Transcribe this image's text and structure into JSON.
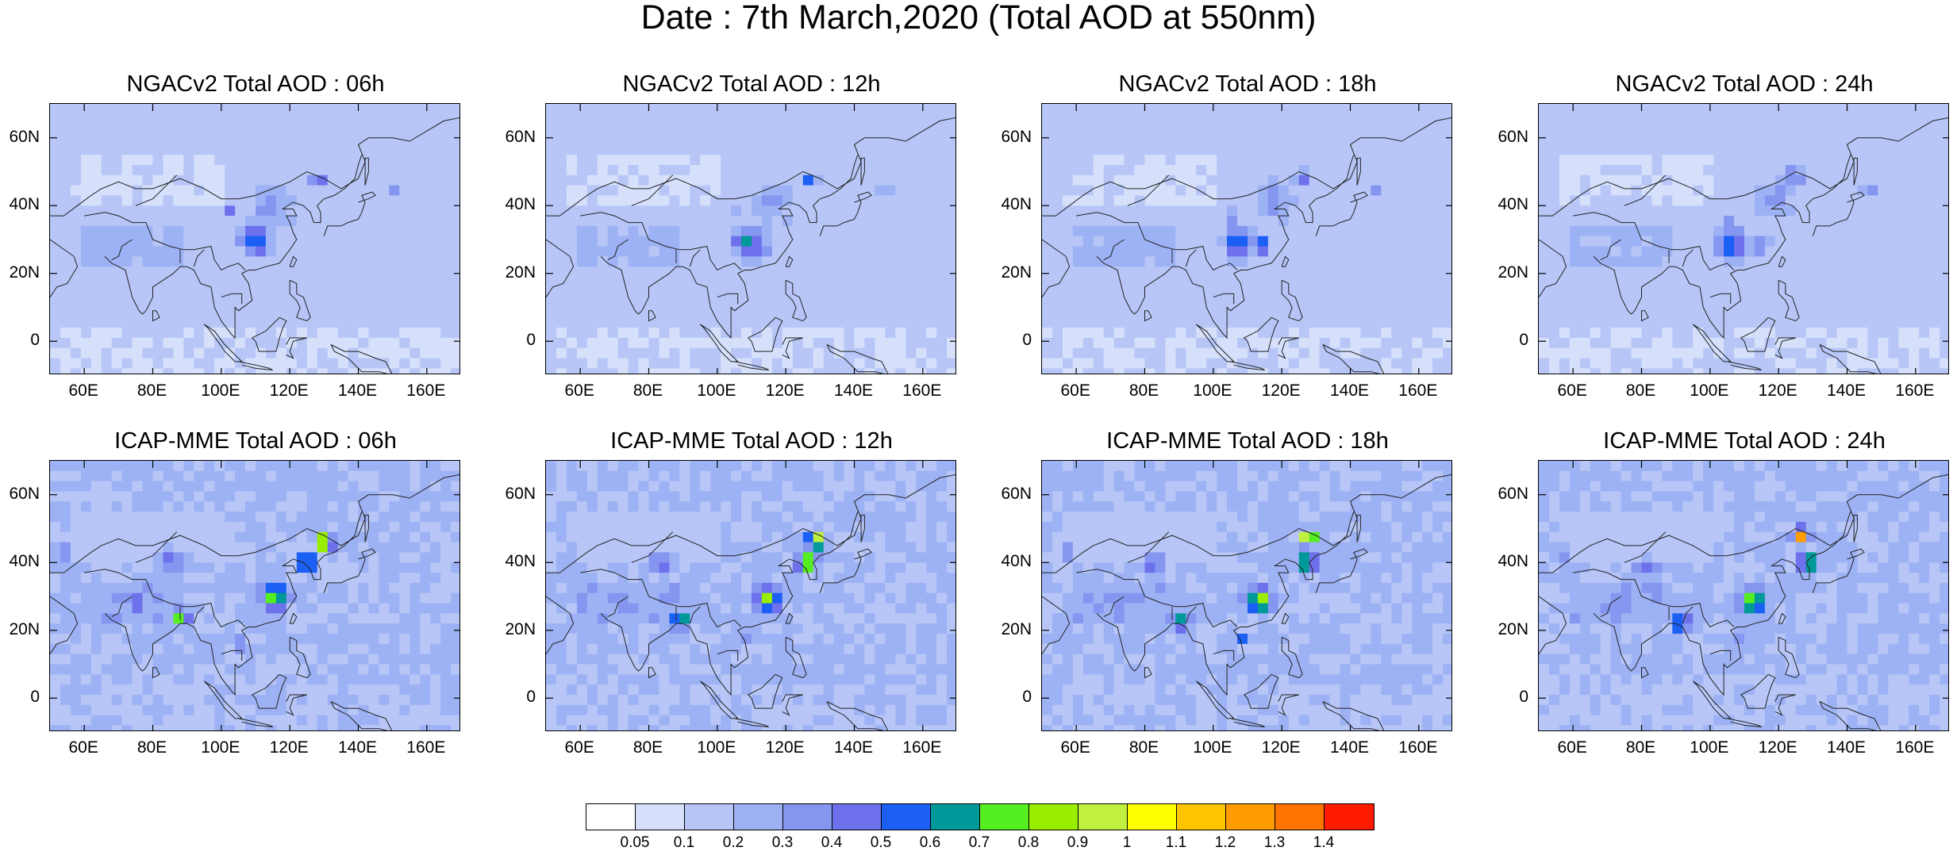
{
  "title": "Date : 7th March,2020 (Total AOD at 550nm)",
  "panels": [
    {
      "title": "NGACv2 Total AOD : 06h",
      "model": "NGACv2",
      "lead": "06h"
    },
    {
      "title": "NGACv2 Total AOD : 12h",
      "model": "NGACv2",
      "lead": "12h"
    },
    {
      "title": "NGACv2 Total AOD : 18h",
      "model": "NGACv2",
      "lead": "18h"
    },
    {
      "title": "NGACv2 Total AOD : 24h",
      "model": "NGACv2",
      "lead": "24h"
    },
    {
      "title": "ICAP-MME Total AOD : 06h",
      "model": "ICAP-MME",
      "lead": "06h"
    },
    {
      "title": "ICAP-MME Total AOD : 12h",
      "model": "ICAP-MME",
      "lead": "12h"
    },
    {
      "title": "ICAP-MME Total AOD : 18h",
      "model": "ICAP-MME",
      "lead": "18h"
    },
    {
      "title": "ICAP-MME Total AOD : 24h",
      "model": "ICAP-MME",
      "lead": "24h"
    }
  ],
  "axes": {
    "lon_range": [
      50,
      170
    ],
    "lat_range": [
      -10,
      70
    ],
    "y_ticks": [
      {
        "value": 60,
        "label": "60N"
      },
      {
        "value": 40,
        "label": "40N"
      },
      {
        "value": 20,
        "label": "20N"
      },
      {
        "value": 0,
        "label": "0"
      }
    ],
    "x_ticks": [
      {
        "value": 60,
        "label": "60E"
      },
      {
        "value": 80,
        "label": "80E"
      },
      {
        "value": 100,
        "label": "100E"
      },
      {
        "value": 120,
        "label": "120E"
      },
      {
        "value": 140,
        "label": "140E"
      },
      {
        "value": 160,
        "label": "160E"
      }
    ]
  },
  "colorbar": {
    "labels": [
      "0.05",
      "0.1",
      "0.2",
      "0.3",
      "0.4",
      "0.5",
      "0.6",
      "0.7",
      "0.8",
      "0.9",
      "1",
      "1.1",
      "1.2",
      "1.3",
      "1.4"
    ],
    "colors": [
      "#ffffff",
      "#d6e0fb",
      "#b7c6f7",
      "#9db2f4",
      "#8596f0",
      "#6d71ec",
      "#1c5ff5",
      "#009999",
      "#55ee22",
      "#99ee00",
      "#c0f040",
      "#ffff00",
      "#ffc400",
      "#ff9c00",
      "#ff7400",
      "#ff1a00"
    ]
  }
}
